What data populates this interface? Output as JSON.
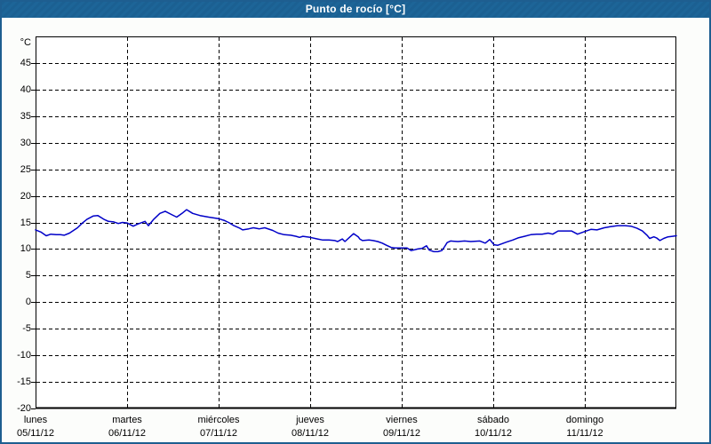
{
  "window": {
    "title": "Punto de rocío [°C]"
  },
  "colors": {
    "titlebar_bg": "#1c6396",
    "titlebar_text": "#ffffff",
    "outer_border": "#1e5e90",
    "plot_bg": "#ffffff",
    "grid": "#000000",
    "line": "#0000c8"
  },
  "chart_data": {
    "type": "line",
    "title": "Punto de rocío [°C]",
    "ylabel": "°C",
    "ylim": [
      -20,
      50
    ],
    "yticks": [
      45,
      40,
      35,
      30,
      25,
      20,
      15,
      10,
      5,
      0,
      -5,
      -10,
      -15,
      -20
    ],
    "x_unit": "hours_from_monday_00",
    "xlim": [
      0,
      168
    ],
    "grid": "dashed",
    "x_categories": [
      {
        "day": "lunes",
        "date": "05/11/12"
      },
      {
        "day": "martes",
        "date": "06/11/12"
      },
      {
        "day": "miércoles",
        "date": "07/11/12"
      },
      {
        "day": "jueves",
        "date": "08/11/12"
      },
      {
        "day": "viernes",
        "date": "09/11/12"
      },
      {
        "day": "sábado",
        "date": "10/11/12"
      },
      {
        "day": "domingo",
        "date": "11/11/12"
      }
    ],
    "series": [
      {
        "name": "Punto de rocío",
        "color": "#0000c8",
        "points": [
          [
            0,
            13.6
          ],
          [
            1.4,
            13.2
          ],
          [
            2.8,
            12.5
          ],
          [
            4,
            12.8
          ],
          [
            5.4,
            12.7
          ],
          [
            6.5,
            12.7
          ],
          [
            7.5,
            12.6
          ],
          [
            8.9,
            13
          ],
          [
            11,
            14
          ],
          [
            12.3,
            14.9
          ],
          [
            13.5,
            15.6
          ],
          [
            15.1,
            16.2
          ],
          [
            16.3,
            16.3
          ],
          [
            17.9,
            15.6
          ],
          [
            19.1,
            15.2
          ],
          [
            20.5,
            15.1
          ],
          [
            21.7,
            14.8
          ],
          [
            22.8,
            15
          ],
          [
            24,
            14.9
          ],
          [
            25.6,
            14.3
          ],
          [
            26.8,
            14.7
          ],
          [
            28.7,
            15.2
          ],
          [
            29.6,
            14.4
          ],
          [
            31,
            15.6
          ],
          [
            32.6,
            16.7
          ],
          [
            34,
            17.1
          ],
          [
            35.6,
            16.5
          ],
          [
            37,
            16
          ],
          [
            38.4,
            16.7
          ],
          [
            39.6,
            17.4
          ],
          [
            41.2,
            16.7
          ],
          [
            43.1,
            16.3
          ],
          [
            45.4,
            16
          ],
          [
            48,
            15.7
          ],
          [
            49.4,
            15.4
          ],
          [
            50.6,
            15
          ],
          [
            52,
            14.4
          ],
          [
            53.6,
            13.9
          ],
          [
            54.3,
            13.6
          ],
          [
            55.9,
            13.8
          ],
          [
            57.1,
            14
          ],
          [
            58.7,
            13.8
          ],
          [
            60.1,
            14
          ],
          [
            62.2,
            13.5
          ],
          [
            63.6,
            13
          ],
          [
            65.2,
            12.7
          ],
          [
            66.9,
            12.6
          ],
          [
            68.3,
            12.4
          ],
          [
            69.2,
            12.2
          ],
          [
            70.1,
            12.4
          ],
          [
            72,
            12.2
          ],
          [
            73.9,
            11.9
          ],
          [
            75.3,
            11.7
          ],
          [
            76.9,
            11.7
          ],
          [
            78.5,
            11.6
          ],
          [
            79.2,
            11.4
          ],
          [
            80.4,
            11.9
          ],
          [
            81.1,
            11.4
          ],
          [
            82.3,
            12.2
          ],
          [
            83.4,
            12.9
          ],
          [
            84.6,
            12.3
          ],
          [
            85,
            11.9
          ],
          [
            85.7,
            11.6
          ],
          [
            87.4,
            11.7
          ],
          [
            88.5,
            11.6
          ],
          [
            89.7,
            11.4
          ],
          [
            90.9,
            11.1
          ],
          [
            92,
            10.7
          ],
          [
            93.2,
            10.3
          ],
          [
            94.3,
            10.2
          ],
          [
            96,
            10.2
          ],
          [
            97.4,
            10.2
          ],
          [
            98.5,
            9.7
          ],
          [
            100.2,
            10
          ],
          [
            101.3,
            10.1
          ],
          [
            102.5,
            10.6
          ],
          [
            103.2,
            9.8
          ],
          [
            104.4,
            9.5
          ],
          [
            105.5,
            9.5
          ],
          [
            106.5,
            9.7
          ],
          [
            107.2,
            10.4
          ],
          [
            107.9,
            11.2
          ],
          [
            108.8,
            11.5
          ],
          [
            110.7,
            11.4
          ],
          [
            112.5,
            11.5
          ],
          [
            114.1,
            11.4
          ],
          [
            116.5,
            11.5
          ],
          [
            117.9,
            11.1
          ],
          [
            119.1,
            11.8
          ],
          [
            120.2,
            10.8
          ],
          [
            121.2,
            10.7
          ],
          [
            122.3,
            11
          ],
          [
            123.5,
            11.3
          ],
          [
            125.1,
            11.7
          ],
          [
            126.5,
            12.1
          ],
          [
            128.2,
            12.4
          ],
          [
            129.8,
            12.7
          ],
          [
            131.4,
            12.8
          ],
          [
            132.8,
            12.8
          ],
          [
            134.4,
            13
          ],
          [
            135.6,
            12.8
          ],
          [
            137,
            13.4
          ],
          [
            138.6,
            13.4
          ],
          [
            140.5,
            13.4
          ],
          [
            142.1,
            12.8
          ],
          [
            144,
            13.3
          ],
          [
            145.6,
            13.7
          ],
          [
            147.2,
            13.6
          ],
          [
            149.1,
            14
          ],
          [
            150.7,
            14.2
          ],
          [
            152.6,
            14.4
          ],
          [
            154.5,
            14.4
          ],
          [
            156.1,
            14.3
          ],
          [
            157.7,
            13.9
          ],
          [
            159.1,
            13.4
          ],
          [
            160.3,
            12.6
          ],
          [
            161,
            12
          ],
          [
            162.1,
            12.3
          ],
          [
            162.8,
            12.1
          ],
          [
            163.7,
            11.6
          ],
          [
            164.7,
            12
          ],
          [
            165.8,
            12.3
          ],
          [
            167,
            12.4
          ],
          [
            168,
            12.5
          ]
        ]
      }
    ]
  }
}
